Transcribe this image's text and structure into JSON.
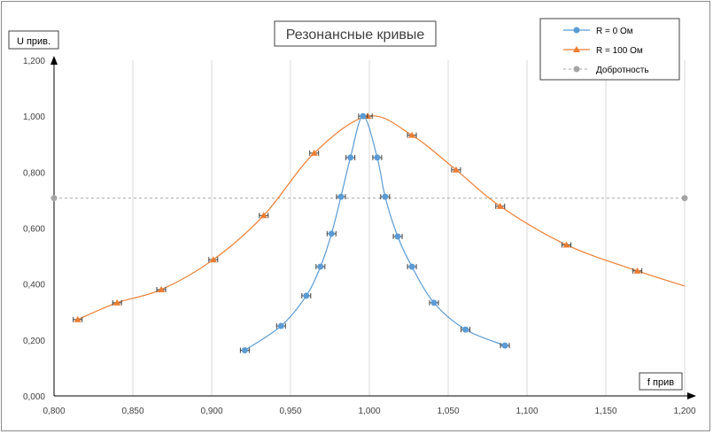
{
  "chart_data": {
    "type": "scatter",
    "title": "Резонансные кривые",
    "xlabel": "f прив",
    "ylabel": "U прив.",
    "xlim": [
      0.8,
      1.2
    ],
    "ylim": [
      0.0,
      1.2
    ],
    "x_ticks": [
      "0,800",
      "0,850",
      "0,900",
      "0,950",
      "1,000",
      "1,050",
      "1,100",
      "1,150",
      "1,200"
    ],
    "y_ticks": [
      "0,000",
      "0,200",
      "0,400",
      "0,600",
      "0,800",
      "1,000",
      "1,200"
    ],
    "grid": "vertical",
    "legend_position": "top-right",
    "series": [
      {
        "name": "R = 0 Ом",
        "color": "#5b9bd5",
        "marker": "circle",
        "x": [
          0.921,
          0.944,
          0.96,
          0.969,
          0.976,
          0.982,
          0.988,
          0.996,
          1.005,
          1.01,
          1.018,
          1.027,
          1.041,
          1.061,
          1.086
        ],
        "y": [
          0.163,
          0.25,
          0.358,
          0.462,
          0.58,
          0.712,
          0.852,
          1.0,
          0.852,
          0.712,
          0.57,
          0.462,
          0.333,
          0.237,
          0.18
        ]
      },
      {
        "name": "R = 100 Ом",
        "color": "#ed7d31",
        "marker": "triangle",
        "x": [
          0.815,
          0.84,
          0.868,
          0.901,
          0.933,
          0.965,
          0.999,
          1.027,
          1.055,
          1.083,
          1.125,
          1.17
        ],
        "y": [
          0.273,
          0.333,
          0.38,
          0.487,
          0.645,
          0.868,
          1.0,
          0.932,
          0.808,
          0.678,
          0.54,
          0.447
        ],
        "curve_end": [
          1.2,
          0.393
        ]
      },
      {
        "name": "Добротность",
        "color": "#a5a5a5",
        "marker": "circle",
        "dashed": true,
        "x": [
          0.8,
          1.2
        ],
        "y": [
          0.707,
          0.707
        ]
      }
    ]
  }
}
